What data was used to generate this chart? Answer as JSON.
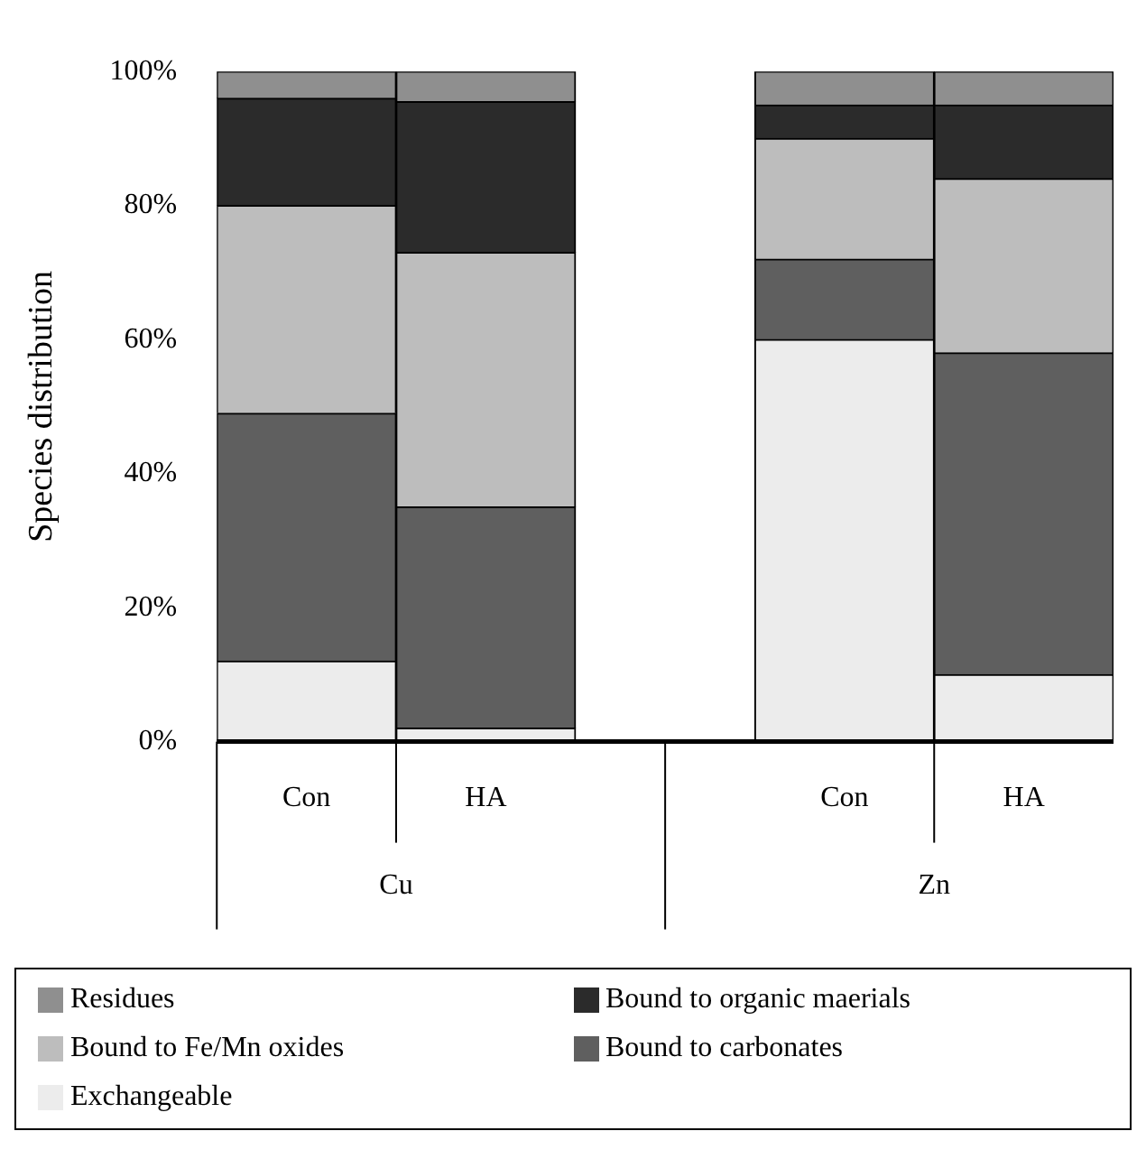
{
  "chart_data": {
    "type": "bar",
    "stacked": true,
    "ylabel": "Species distribution",
    "categories": [
      "Con",
      "HA",
      null,
      "Con",
      "HA"
    ],
    "series": [
      {
        "name": "Exchangeable",
        "color": "#ececec",
        "values": [
          12,
          2,
          null,
          60,
          10
        ]
      },
      {
        "name": "Bound to carbonates",
        "color": "#5f5f5f",
        "values": [
          37,
          33,
          null,
          12,
          48
        ]
      },
      {
        "name": "Bound to Fe/Mn oxides",
        "color": "#bdbdbd",
        "values": [
          31,
          38,
          null,
          18,
          26
        ]
      },
      {
        "name": "Bound to organic maerials",
        "color": "#2b2b2b",
        "values": [
          16,
          22.5,
          null,
          5,
          11
        ]
      },
      {
        "name": "Residues",
        "color": "#8f8f8f",
        "values": [
          4,
          4.5,
          null,
          5,
          5
        ]
      }
    ],
    "ylim": [
      0,
      100
    ],
    "yticks": [
      {
        "value": 0,
        "label": "0%"
      },
      {
        "value": 20,
        "label": "20%"
      },
      {
        "value": 40,
        "label": "40%"
      },
      {
        "value": 60,
        "label": "60%"
      },
      {
        "value": 80,
        "label": "80%"
      },
      {
        "value": 100,
        "label": "100%"
      }
    ],
    "annotations": [
      "Cu",
      "Zn"
    ],
    "grid": false,
    "legend": "bottom"
  }
}
